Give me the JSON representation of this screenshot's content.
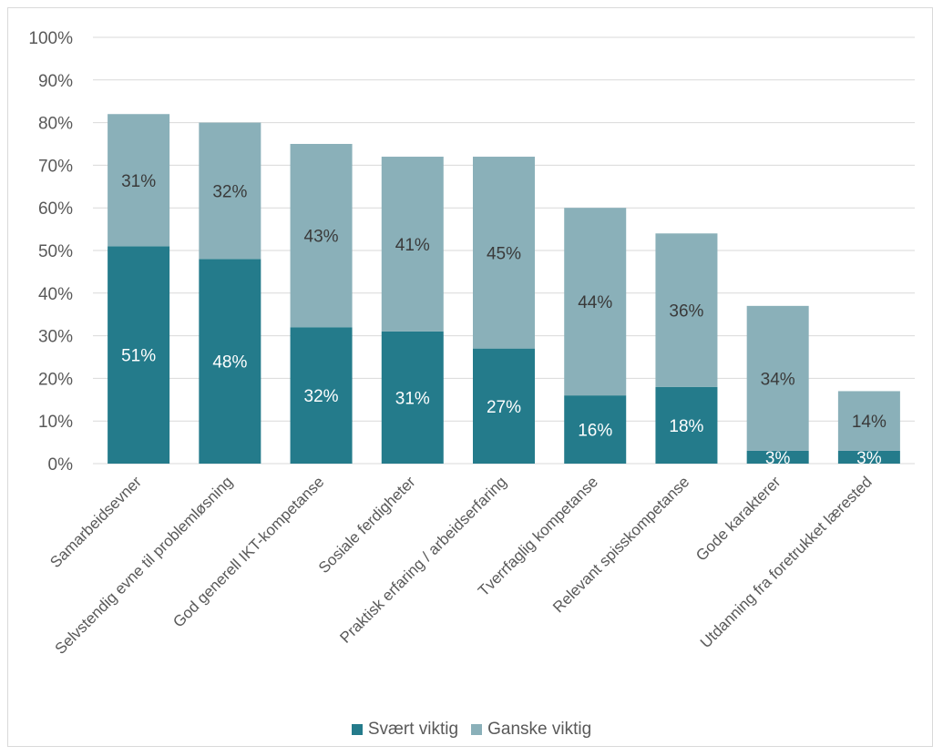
{
  "chart_data": {
    "type": "bar",
    "stacked": true,
    "categories": [
      "Samarbeidsevner",
      "Selvstendig evne til problemløsning",
      "God generell IKT-kompetanse",
      "Sosiale ferdigheter",
      "Praktisk erfaring / arbeidserfaring",
      "Tverrfaglig kompetanse",
      "Relevant spisskompetanse",
      "Gode karakterer",
      "Utdanning fra foretrukket lærested"
    ],
    "series": [
      {
        "name": "Svært viktig",
        "color": "#247b8b",
        "label_color": "#ffffff",
        "values": [
          51,
          48,
          32,
          31,
          27,
          16,
          18,
          3,
          3
        ],
        "labels": [
          "51%",
          "48%",
          "32%",
          "31%",
          "27%",
          "16%",
          "18%",
          "3%",
          "3%"
        ]
      },
      {
        "name": "Ganske viktig",
        "color": "#8ab0b9",
        "label_color": "#3a3a3a",
        "values": [
          31,
          32,
          43,
          41,
          45,
          44,
          36,
          34,
          14
        ],
        "labels": [
          "31%",
          "32%",
          "43%",
          "41%",
          "45%",
          "44%",
          "36%",
          "34%",
          "14%"
        ]
      }
    ],
    "ylim": [
      0,
      100
    ],
    "y_ticks": [
      "0%",
      "10%",
      "20%",
      "30%",
      "40%",
      "50%",
      "60%",
      "70%",
      "80%",
      "90%",
      "100%"
    ],
    "grid": true,
    "gridline_color": "#d9d9d9",
    "legend_position": "bottom"
  }
}
